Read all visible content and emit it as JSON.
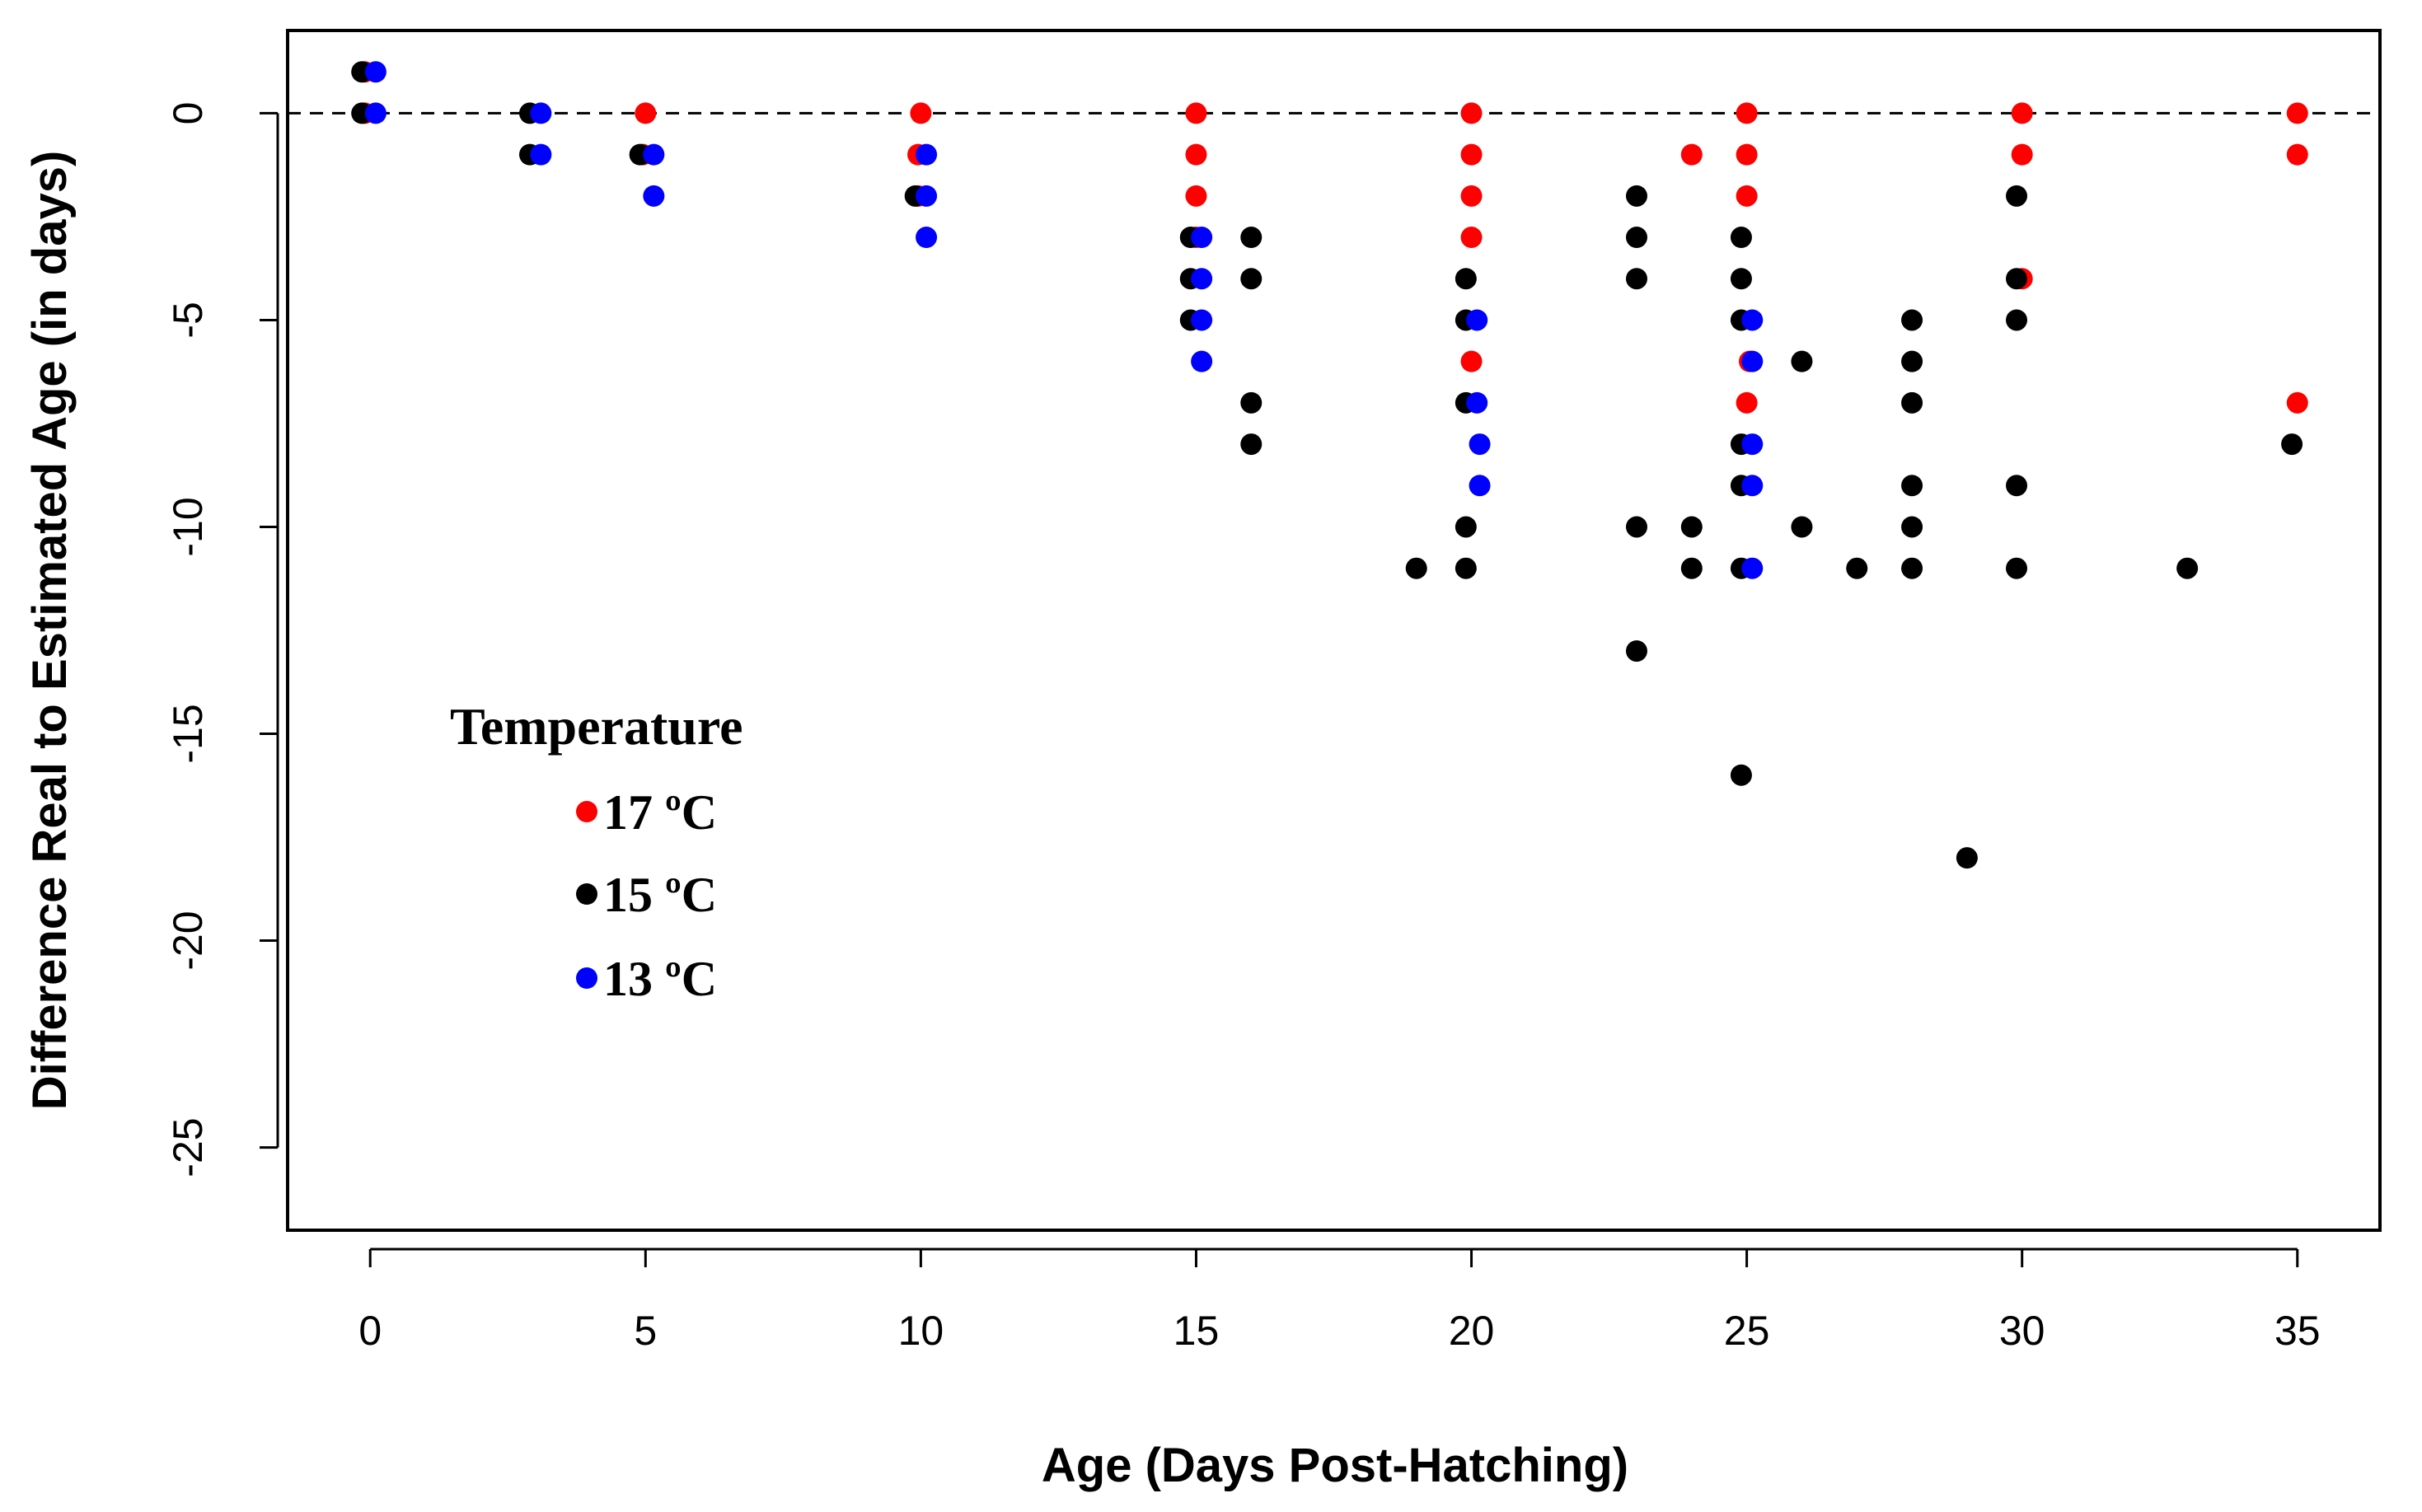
{
  "chart_data": {
    "type": "scatter",
    "title": "",
    "xlabel": "Age (Days Post-Hatching)",
    "ylabel": "Difference Real to Estimated Age (in days)",
    "xlim": [
      -1.5,
      36.5
    ],
    "ylim": [
      -27,
      2
    ],
    "xticks": [
      0,
      5,
      10,
      15,
      20,
      25,
      30,
      35
    ],
    "yticks": [
      0,
      -5,
      -10,
      -15,
      -20,
      -25
    ],
    "xtick_labels": [
      "0",
      "5",
      "10",
      "15",
      "20",
      "25",
      "30",
      "35"
    ],
    "ytick_labels": [
      "0",
      "-5",
      "-10",
      "-15",
      "-20",
      "-25"
    ],
    "reference_line": {
      "y": 0,
      "style": "dashed"
    },
    "legend": {
      "title": "Temperature",
      "position": "lower-left"
    },
    "series": [
      {
        "name": "17 ºC",
        "color": "#ff0000",
        "points": [
          [
            -0.1,
            1
          ],
          [
            -0.1,
            0
          ],
          [
            5,
            0
          ],
          [
            4.95,
            -1
          ],
          [
            10,
            0
          ],
          [
            9.95,
            -1
          ],
          [
            9.95,
            -2
          ],
          [
            15,
            0
          ],
          [
            15,
            -1
          ],
          [
            15,
            -2
          ],
          [
            15,
            -3
          ],
          [
            20,
            0
          ],
          [
            20,
            -1
          ],
          [
            20,
            -2
          ],
          [
            20,
            -3
          ],
          [
            20,
            -6
          ],
          [
            25,
            0
          ],
          [
            25,
            -1
          ],
          [
            25,
            -2
          ],
          [
            25.05,
            -6
          ],
          [
            25,
            -7
          ],
          [
            24,
            -1
          ],
          [
            30,
            0
          ],
          [
            30,
            -1
          ],
          [
            30,
            -4
          ],
          [
            35,
            0
          ],
          [
            35,
            -1
          ],
          [
            35,
            -7
          ]
        ]
      },
      {
        "name": "15 ºC",
        "color": "#000000",
        "points": [
          [
            -0.15,
            1
          ],
          [
            -0.15,
            0
          ],
          [
            2.9,
            0
          ],
          [
            2.9,
            -1
          ],
          [
            4.9,
            -1
          ],
          [
            9.9,
            -2
          ],
          [
            14.9,
            -3
          ],
          [
            14.9,
            -4
          ],
          [
            14.9,
            -5
          ],
          [
            16,
            -3
          ],
          [
            16,
            -4
          ],
          [
            16,
            -7
          ],
          [
            16,
            -8
          ],
          [
            19,
            -11
          ],
          [
            19.9,
            -4
          ],
          [
            19.9,
            -5
          ],
          [
            19.9,
            -7
          ],
          [
            19.9,
            -10
          ],
          [
            19.9,
            -11
          ],
          [
            23,
            -2
          ],
          [
            23,
            -3
          ],
          [
            23,
            -4
          ],
          [
            23,
            -10
          ],
          [
            23,
            -13
          ],
          [
            24,
            -10
          ],
          [
            24,
            -11
          ],
          [
            24.9,
            -3
          ],
          [
            24.9,
            -4
          ],
          [
            24.9,
            -5
          ],
          [
            24.9,
            -8
          ],
          [
            24.9,
            -9
          ],
          [
            24.9,
            -11
          ],
          [
            24.9,
            -16
          ],
          [
            26,
            -6
          ],
          [
            26,
            -10
          ],
          [
            27,
            -11
          ],
          [
            28,
            -5
          ],
          [
            28,
            -6
          ],
          [
            28,
            -7
          ],
          [
            28,
            -9
          ],
          [
            28,
            -10
          ],
          [
            28,
            -11
          ],
          [
            29,
            -18
          ],
          [
            29.9,
            -2
          ],
          [
            29.9,
            -4
          ],
          [
            29.9,
            -5
          ],
          [
            29.9,
            -9
          ],
          [
            29.9,
            -11
          ],
          [
            33,
            -11
          ],
          [
            34.9,
            -8
          ]
        ]
      },
      {
        "name": "13 ºC",
        "color": "#0000ff",
        "points": [
          [
            0.1,
            1
          ],
          [
            0.1,
            0
          ],
          [
            3.1,
            0
          ],
          [
            3.1,
            -1
          ],
          [
            5.15,
            -1
          ],
          [
            5.15,
            -2
          ],
          [
            10.1,
            -1
          ],
          [
            10.1,
            -2
          ],
          [
            10.1,
            -3
          ],
          [
            15.1,
            -3
          ],
          [
            15.1,
            -4
          ],
          [
            15.1,
            -5
          ],
          [
            15.1,
            -6
          ],
          [
            20.1,
            -5
          ],
          [
            20.1,
            -7
          ],
          [
            20.15,
            -8
          ],
          [
            20.15,
            -9
          ],
          [
            25.1,
            -5
          ],
          [
            25.1,
            -6
          ],
          [
            25.1,
            -8
          ],
          [
            25.1,
            -9
          ],
          [
            25.1,
            -11
          ]
        ]
      }
    ]
  }
}
